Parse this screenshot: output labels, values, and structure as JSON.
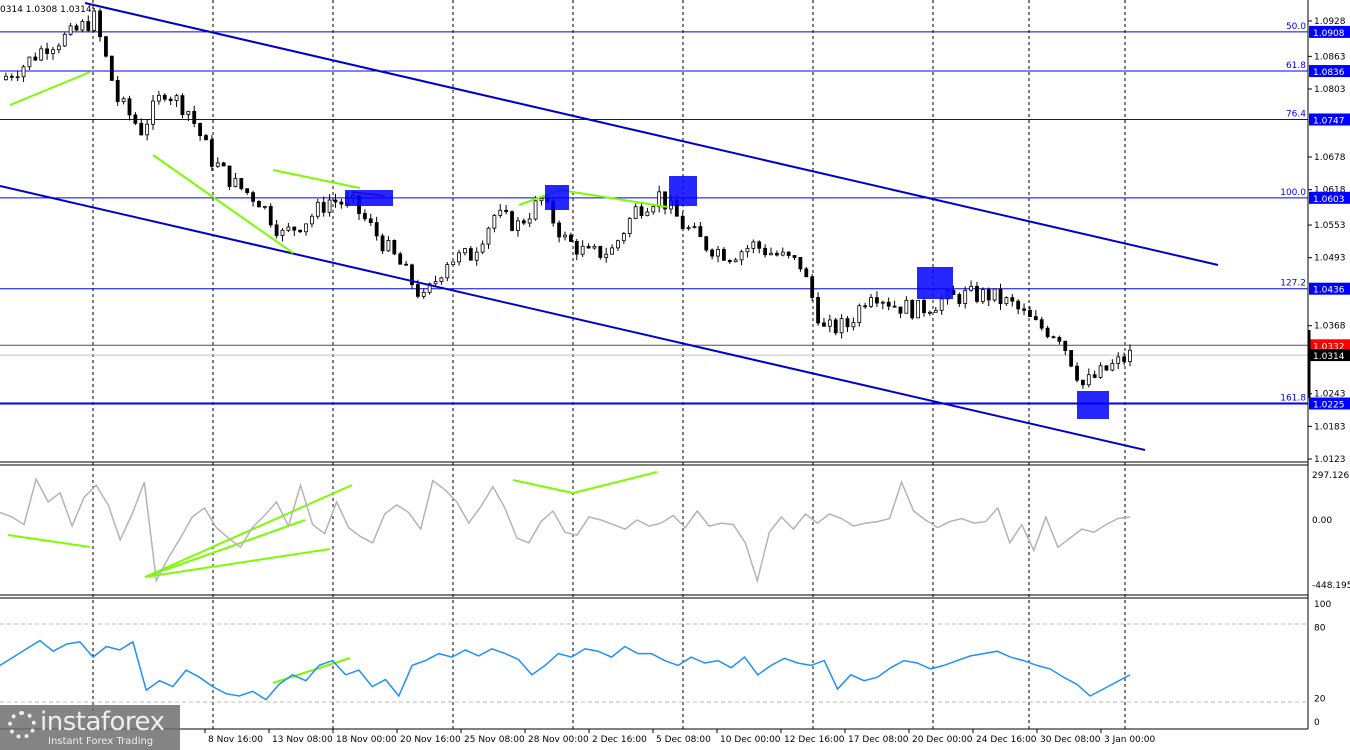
{
  "header": {
    "ohlc_text": "0314 1.0308 1.0314"
  },
  "colors": {
    "fib": "#0000ff",
    "channel": "#0000cd",
    "divergence": "#7cfc00",
    "rsi": "#1e90ff",
    "cci": "#b4b4b4",
    "bid": "#ff0000"
  },
  "chart_data": [
    {
      "type": "candlestick",
      "pane": "price",
      "ylim": [
        1.0123,
        1.0928
      ],
      "y_ticks": [
        "1.0928",
        "1.0863",
        "1.0803",
        "1.0678",
        "1.0618",
        "1.0553",
        "1.0493",
        "1.0368",
        "1.0243",
        "1.0183",
        "1.0123"
      ],
      "close_samples": [
        1.082,
        1.0847,
        1.0884,
        1.0902,
        1.0933,
        1.0783,
        1.0728,
        1.0801,
        1.0764,
        1.0673,
        1.0627,
        1.0599,
        1.0535,
        1.0562,
        1.0599,
        1.059,
        1.0535,
        1.048,
        1.0415,
        1.0489,
        1.0498,
        1.0571,
        1.0553,
        1.0599,
        1.0526,
        1.0498,
        1.0507,
        1.0581,
        1.0608,
        1.0553,
        1.0516,
        1.0498,
        1.0516,
        1.0498,
        1.048,
        1.036,
        1.0369,
        1.0434,
        1.0406,
        1.0397,
        1.0415,
        1.0424,
        1.0424,
        1.0406,
        1.0369,
        1.0351,
        1.0259,
        1.0287,
        1.0314
      ],
      "fib_levels": [
        {
          "label": "50.0",
          "price": "1.0908",
          "value": 1.0908
        },
        {
          "label": "61.8",
          "price": "1.0836",
          "value": 1.0836
        },
        {
          "label": "76.4",
          "price": "1.0747",
          "value": 1.0747
        },
        {
          "label": "100.0",
          "price": "1.0603",
          "value": 1.0603
        },
        {
          "label": "127.2",
          "price": "1.0436",
          "value": 1.0436
        },
        {
          "label": "161.8",
          "price": "1.0225",
          "value": 1.0225
        }
      ],
      "ask": {
        "price": "1.0332",
        "value": 1.0332
      },
      "bid": {
        "price": "1.0314",
        "value": 1.0314
      }
    },
    {
      "type": "line",
      "pane": "cci",
      "ylim": [
        -448.195,
        297.1261
      ],
      "y_ticks": [
        "297.1261",
        "0.00",
        "-448.195"
      ],
      "values": [
        50,
        20,
        -30,
        270,
        120,
        180,
        -40,
        150,
        230,
        100,
        -130,
        40,
        250,
        -400,
        -250,
        -120,
        20,
        80,
        -50,
        -120,
        -180,
        -50,
        30,
        120,
        -40,
        230,
        -30,
        -90,
        120,
        -50,
        -110,
        -150,
        40,
        100,
        50,
        -60,
        260,
        200,
        120,
        -20,
        90,
        220,
        80,
        -120,
        -150,
        -10,
        60,
        -80,
        -100,
        20,
        0,
        -30,
        -60,
        0,
        -40,
        -20,
        30,
        -50,
        60,
        -40,
        -20,
        -30,
        -150,
        -400,
        -80,
        20,
        -60,
        40,
        -20,
        40,
        10,
        -40,
        -20,
        -10,
        10,
        250,
        60,
        0,
        -50,
        -10,
        10,
        -20,
        -10,
        80,
        -150,
        -30,
        -200,
        20,
        -180,
        -120,
        -60,
        -80,
        -30,
        10,
        20
      ]
    },
    {
      "type": "line",
      "pane": "rsi",
      "ylim": [
        0,
        100
      ],
      "y_ticks": [
        "100",
        "80",
        "20",
        "0"
      ],
      "levels": [
        80,
        20
      ],
      "values": [
        48,
        55,
        62,
        69,
        60,
        66,
        68,
        55,
        64,
        61,
        68,
        27,
        35,
        30,
        44,
        38,
        30,
        24,
        22,
        26,
        19,
        32,
        40,
        35,
        48,
        52,
        40,
        44,
        30,
        36,
        22,
        48,
        52,
        58,
        55,
        61,
        56,
        62,
        58,
        53,
        40,
        48,
        58,
        55,
        62,
        60,
        55,
        64,
        58,
        58,
        52,
        48,
        55,
        50,
        52,
        46,
        55,
        40,
        48,
        54,
        50,
        48,
        52,
        28,
        40,
        35,
        38,
        46,
        52,
        50,
        45,
        48,
        52,
        56,
        58,
        60,
        55,
        52,
        48,
        45,
        38,
        32,
        22,
        28,
        34,
        40
      ]
    }
  ],
  "x_axis": {
    "labels": [
      "8 Nov 16:00",
      "13 Nov 08:00",
      "18 Nov 00:00",
      "20 Nov 16:00",
      "25 Nov 08:00",
      "28 Nov 00:00",
      "2 Dec 16:00",
      "5 Dec 08:00",
      "10 Dec 00:00",
      "12 Dec 16:00",
      "17 Dec 08:00",
      "20 Dec 00:00",
      "24 Dec 16:00",
      "30 Dec 08:00",
      "3 Jan 00:00"
    ]
  },
  "logo": {
    "brand": "instaforex",
    "tagline": "Instant Forex Trading"
  }
}
